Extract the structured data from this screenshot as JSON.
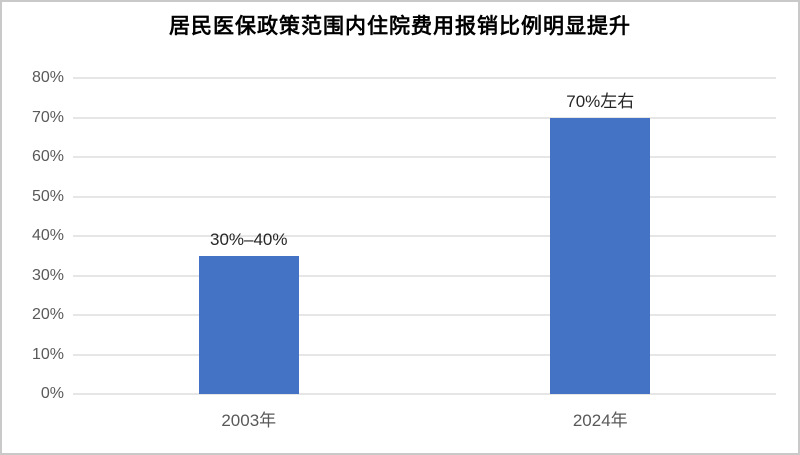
{
  "title": "居民医保政策范围内住院费用报销比例明显提升",
  "colors": {
    "bar": "#4472C4",
    "axis_text": "#595959",
    "data_label_text": "#262626",
    "title_text": "#000000",
    "gridline": "#E6E6E6",
    "frame_border": "#C9C9C9"
  },
  "chart_data": {
    "type": "bar",
    "title": "居民医保政策范围内住院费用报销比例明显提升",
    "categories": [
      "2003年",
      "2024年"
    ],
    "values": [
      35,
      70
    ],
    "data_labels": [
      "30%–40%",
      "70%左右"
    ],
    "xlabel": "",
    "ylabel": "",
    "ylim": [
      0,
      80
    ],
    "ytick_labels": [
      "0%",
      "10%",
      "20%",
      "30%",
      "40%",
      "50%",
      "60%",
      "70%",
      "80%"
    ],
    "grid": true,
    "legend": false
  }
}
